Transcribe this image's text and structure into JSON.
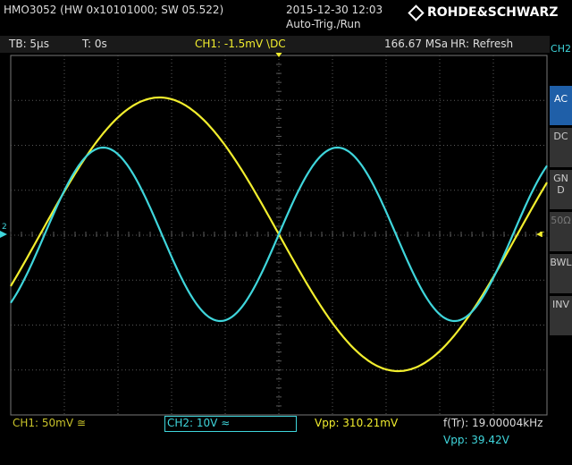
{
  "header": {
    "device": "HMO3052 (HW 0x10101000; SW 05.522)",
    "datetime": "2015-12-30 12:03",
    "trigger_state": "Auto-Trig./Run",
    "brand": "ROHDE&SCHWARZ"
  },
  "status": {
    "timebase": "TB: 5µs",
    "trigger_time": "T: 0s",
    "ch1_trigger": "CH1: -1.5mV \\DC",
    "sample_rate": "166.67 MSa",
    "mode": "HR: Refresh"
  },
  "markers": {
    "ch2": "2",
    "trigger": "T"
  },
  "side_menu": {
    "title": "CH2",
    "items": [
      "AC",
      "DC",
      "GND",
      "50Ω",
      "BWL",
      "INV"
    ]
  },
  "footer": {
    "ch1": "CH1: 50mV ≅",
    "ch2": "CH2: 10V ≈",
    "ch1_vpp": "Vpp: 310.21mV",
    "freq": "f(Tr): 19.00004kHz",
    "ch2_vpp": "Vpp: 39.42V"
  }
}
